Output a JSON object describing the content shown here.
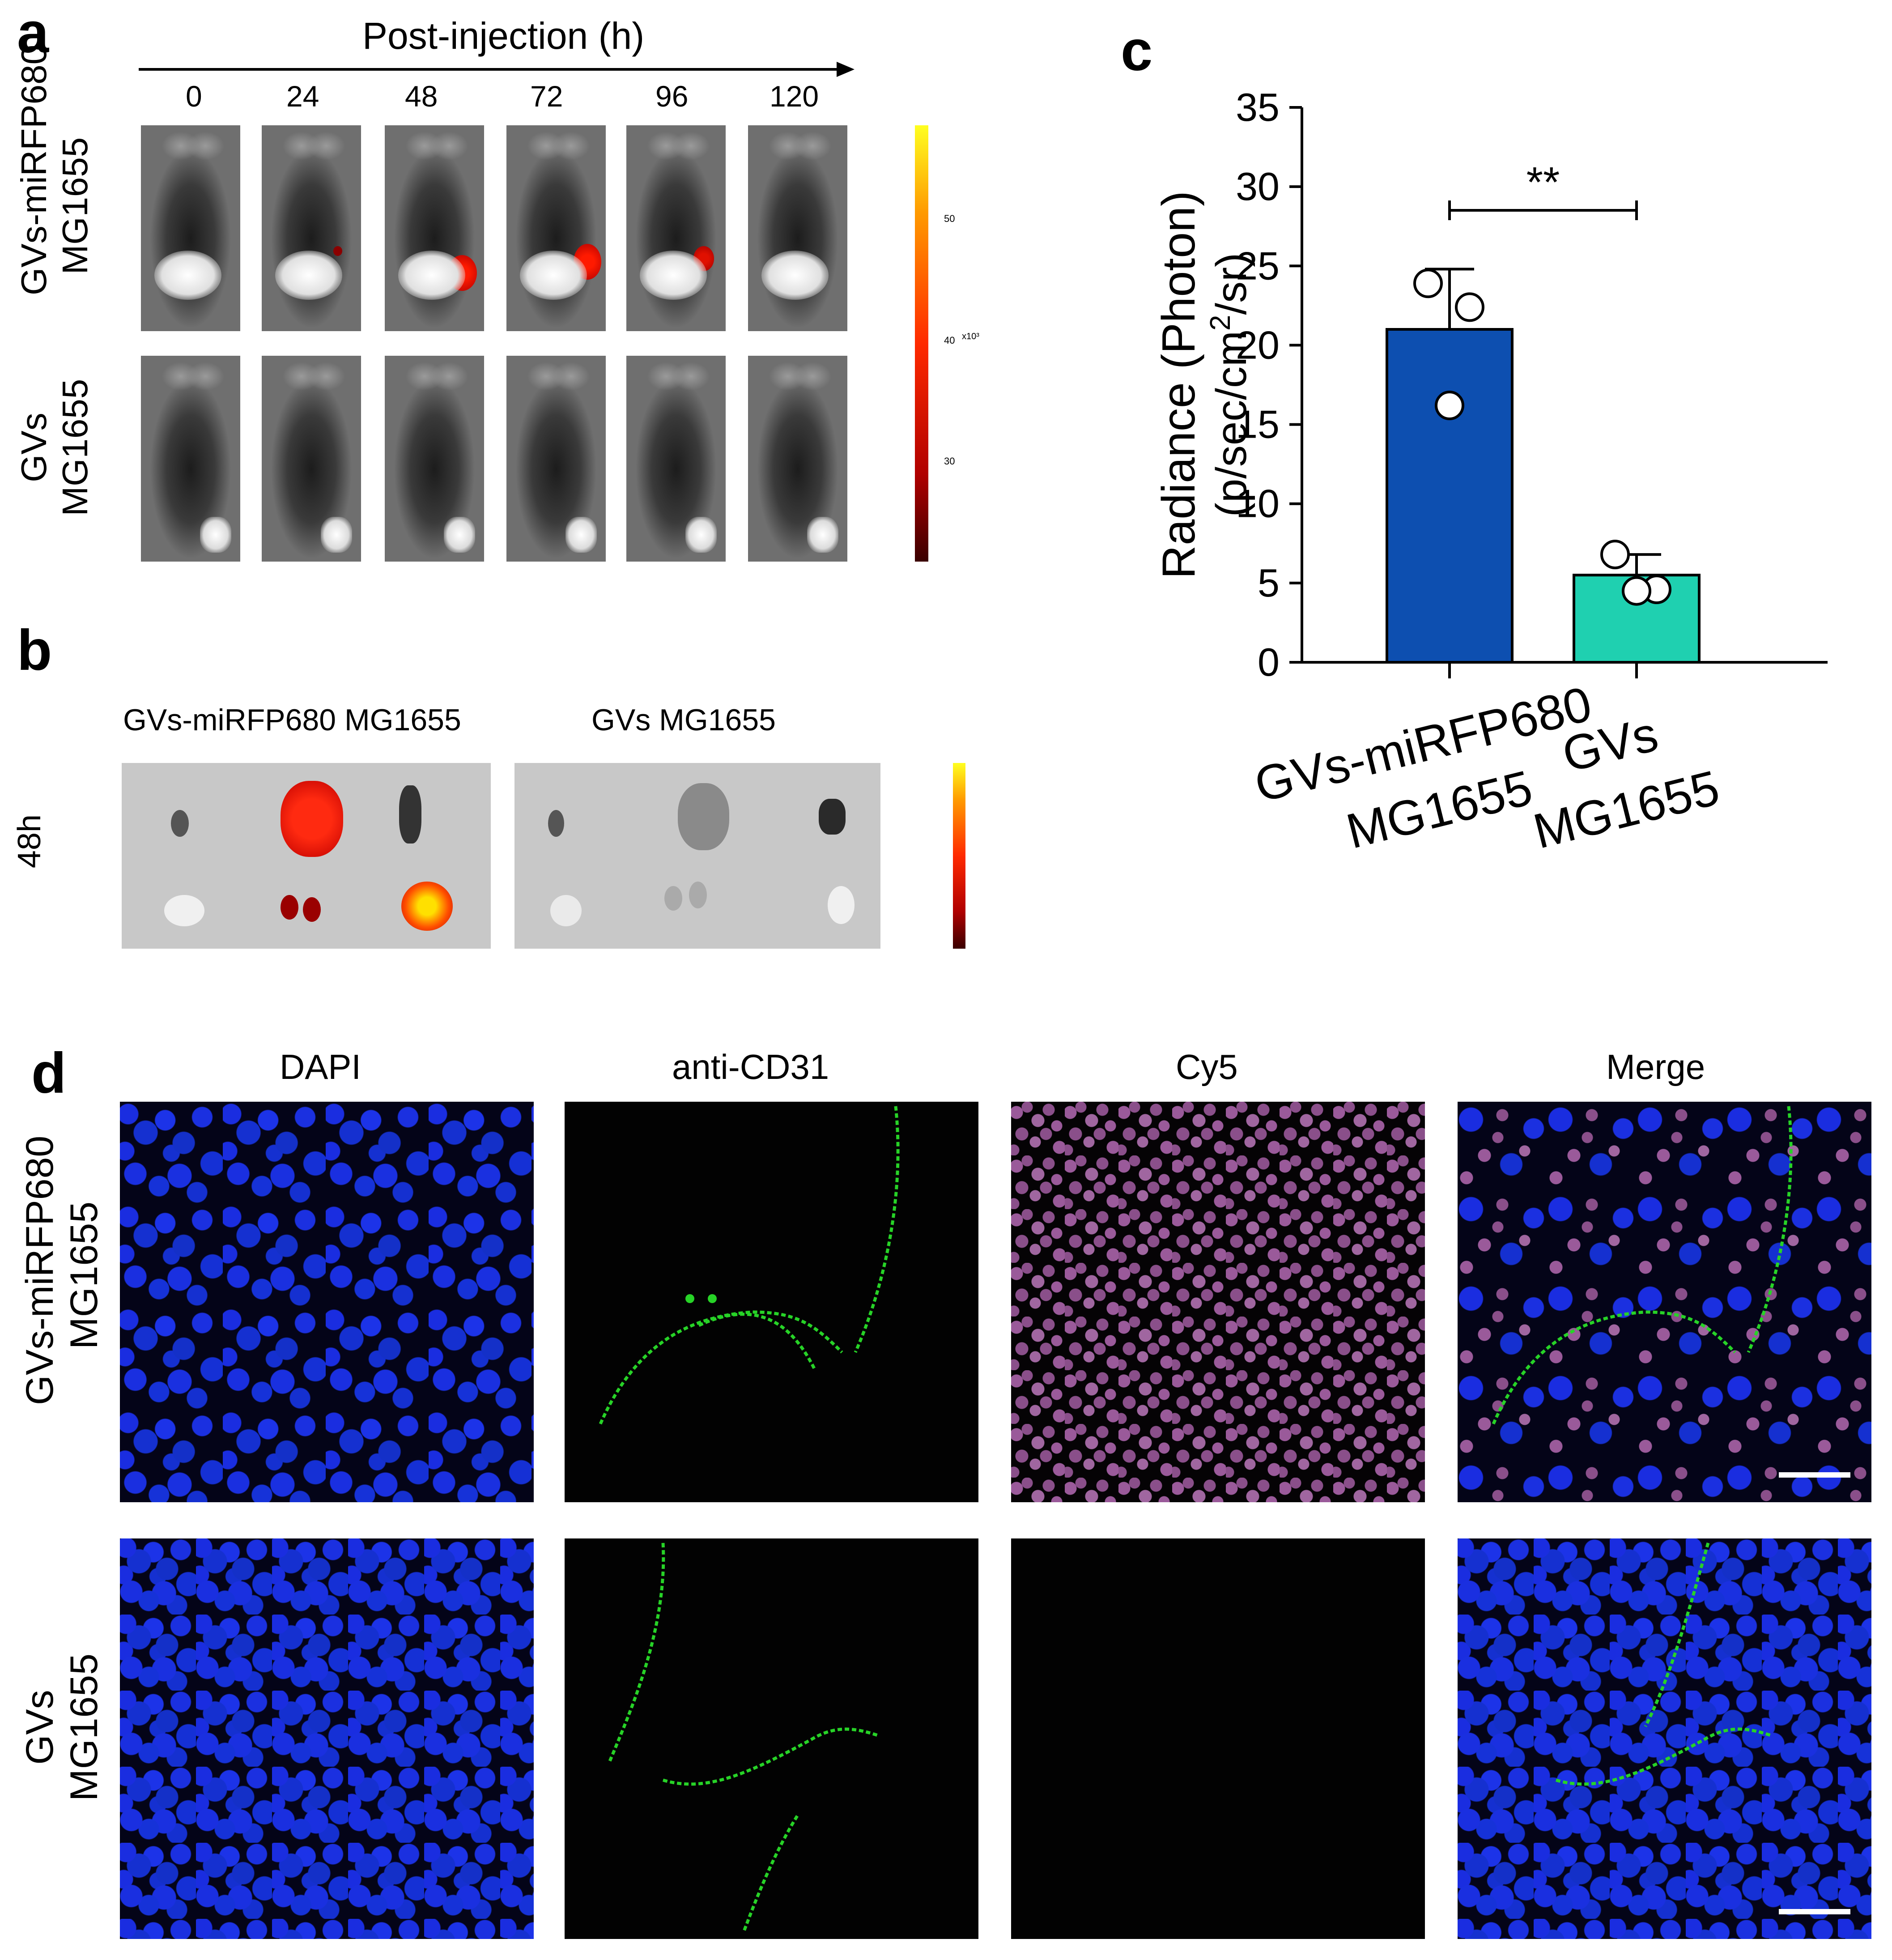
{
  "panel_a": {
    "letter": "a",
    "axis_title": "Post-injection (h)",
    "timepoints": [
      "0",
      "24",
      "48",
      "72",
      "96",
      "120"
    ],
    "row_labels": [
      [
        "GVs-miRFP680",
        "MG1655"
      ],
      [
        "GVs",
        "MG1655"
      ]
    ],
    "colorbar_ticks": [
      "50",
      "40",
      "30"
    ],
    "colorbar_unit": "x10³"
  },
  "panel_b": {
    "letter": "b",
    "row_label": "48h",
    "group_titles": [
      "GVs-miRFP680 MG1655",
      "GVs MG1655"
    ]
  },
  "panel_c": {
    "letter": "c",
    "significance": "**"
  },
  "chart_data": {
    "type": "bar",
    "categories": [
      "GVs-miRFP680 MG1655",
      "GVs MG1655"
    ],
    "category_lines": [
      [
        "GVs-miRFP680",
        "MG1655"
      ],
      [
        "GVs",
        "MG1655"
      ]
    ],
    "values": [
      21.0,
      5.5
    ],
    "error": [
      3.8,
      1.3
    ],
    "points": [
      [
        23.9,
        22.4,
        16.2
      ],
      [
        6.8,
        4.6,
        4.5
      ]
    ],
    "bar_colors": [
      "#0d4fb0",
      "#1fd0b0"
    ],
    "ylabel_line1": "Radiance (Photon)",
    "ylabel_line2_parts": [
      "(p/sec/cm",
      "2",
      "/sr)"
    ],
    "ylim": [
      0,
      35
    ],
    "yticks": [
      0,
      5,
      10,
      15,
      20,
      25,
      30,
      35
    ],
    "grid": false
  },
  "panel_d": {
    "letter": "d",
    "channels": [
      "DAPI",
      "anti-CD31",
      "Cy5",
      "Merge"
    ],
    "row_labels": [
      [
        "GVs-miRFP680",
        "MG1655"
      ],
      [
        "GVs",
        "MG1655"
      ]
    ]
  }
}
